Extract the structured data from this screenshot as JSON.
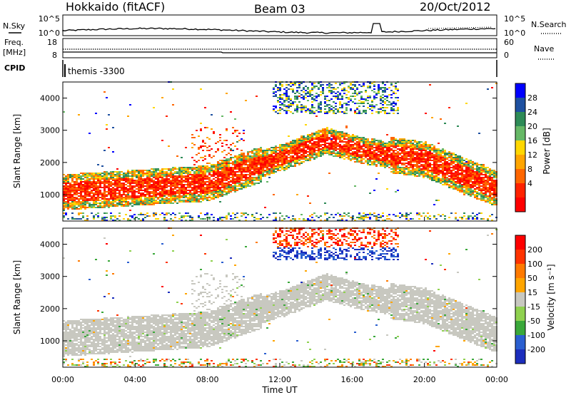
{
  "header": {
    "left_title": "Hokkaido (fitACF)",
    "center_title": "Beam 03",
    "right_title": "20/Oct/2012"
  },
  "noise_panel": {
    "left_label": "N.Sky",
    "right_label": "N.Search",
    "left_ticks": [
      "10^5",
      "10^0"
    ],
    "right_ticks": [
      "10^5",
      "10^0"
    ]
  },
  "freq_panel": {
    "left_label_line1": "Freq.",
    "left_label_line2": "[MHz]",
    "right_label": "Nave",
    "left_ticks": [
      "18",
      "8"
    ],
    "right_ticks": [
      "60",
      "0"
    ]
  },
  "cpid_panel": {
    "label": "CPID",
    "mode_text": "themis -3300"
  },
  "colors": {
    "power_scale": [
      "#0000ff",
      "#1e50a0",
      "#2e8b57",
      "#66b866",
      "#ffd700",
      "#ffa500",
      "#ff6600",
      "#ff2200",
      "#ff0000"
    ],
    "velocity_scale": [
      "#1c2ebd",
      "#2a5fd0",
      "#3aa83a",
      "#8fd14f",
      "#c8c8c0",
      "#ffa500",
      "#ff7a00",
      "#ff3300",
      "#ff0000"
    ],
    "ground_scatter": "#c8c8c0"
  },
  "chart_data": [
    {
      "type": "heatmap",
      "name": "power",
      "ylabel": "Slant Range [km]",
      "yticks": [
        "1000",
        "2000",
        "3000",
        "4000"
      ],
      "xticks": [
        "00:00",
        "04:00",
        "08:00",
        "12:00",
        "16:00",
        "20:00",
        "00:00"
      ],
      "xlim": [
        "00:00",
        "24:00"
      ],
      "ylim": [
        180,
        4500
      ],
      "colorbar": {
        "label": "Power [dB]",
        "ticks": [
          "28",
          "24",
          "20",
          "16",
          "12",
          "8",
          "4"
        ],
        "range": [
          0,
          32
        ]
      }
    },
    {
      "type": "heatmap",
      "name": "velocity",
      "ylabel": "Slant Range [km]",
      "yticks": [
        "1000",
        "2000",
        "3000",
        "4000"
      ],
      "xticks": [
        "00:00",
        "04:00",
        "08:00",
        "12:00",
        "16:00",
        "20:00",
        "00:00"
      ],
      "xlim": [
        "00:00",
        "24:00"
      ],
      "ylim": [
        180,
        4500
      ],
      "xlabel": "Time UT",
      "colorbar": {
        "label": "Velocity [m s⁻¹]",
        "ticks": [
          "200",
          "100",
          "50",
          "15",
          "-15",
          "-50",
          "-100",
          "-200"
        ],
        "range": [
          -250,
          250
        ]
      }
    }
  ]
}
